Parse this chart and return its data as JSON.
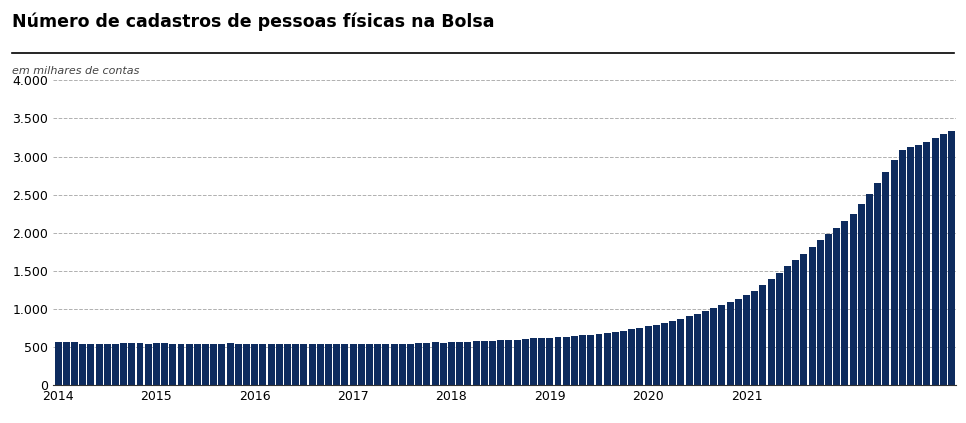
{
  "title": "Número de cadastros de pessoas físicas na Bolsa",
  "subtitle": "em milhares de contas",
  "bar_color": "#0d2b5e",
  "background_color": "#ffffff",
  "ylim": [
    0,
    4000
  ],
  "yticks": [
    0,
    500,
    1000,
    1500,
    2000,
    2500,
    3000,
    3500,
    4000
  ],
  "values": [
    560,
    565,
    558,
    540,
    535,
    535,
    537,
    540,
    545,
    548,
    545,
    542,
    545,
    548,
    542,
    540,
    538,
    537,
    538,
    540,
    543,
    545,
    543,
    540,
    542,
    540,
    538,
    537,
    536,
    536,
    537,
    538,
    540,
    542,
    540,
    538,
    540,
    538,
    537,
    536,
    536,
    537,
    538,
    542,
    548,
    555,
    558,
    555,
    558,
    562,
    568,
    572,
    578,
    582,
    585,
    590,
    595,
    602,
    610,
    615,
    620,
    628,
    635,
    642,
    650,
    658,
    668,
    680,
    695,
    710,
    730,
    750,
    770,
    790,
    810,
    840,
    870,
    900,
    935,
    970,
    1005,
    1045,
    1085,
    1130,
    1180,
    1240,
    1310,
    1390,
    1470,
    1560,
    1640,
    1720,
    1810,
    1910,
    1980,
    2060,
    2150,
    2250,
    2380,
    2510,
    2650,
    2800,
    2960,
    3080,
    3120,
    3155,
    3195,
    3240,
    3300,
    3340
  ],
  "x_tick_labels": [
    "2014",
    "2015",
    "2016",
    "2017",
    "2018",
    "2019",
    "2020",
    "2021"
  ],
  "x_tick_positions": [
    0,
    12,
    24,
    36,
    48,
    60,
    72,
    84
  ]
}
